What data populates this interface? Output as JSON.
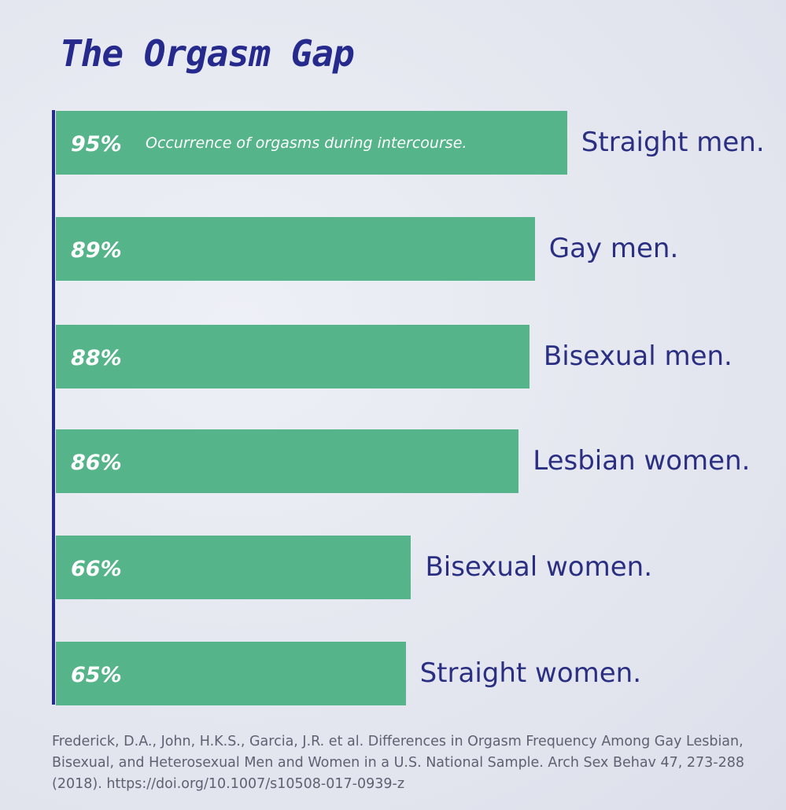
{
  "colors": {
    "bar": "#55b489",
    "title": "#262a8c",
    "label": "#2b2f82",
    "axis": "#262a8c"
  },
  "chart_data": {
    "type": "bar",
    "orientation": "horizontal",
    "title": "The Orgasm Gap",
    "annotation": "Occurrence of orgasms during intercourse.",
    "categories": [
      "Straight men.",
      "Gay men.",
      "Bisexual men.",
      "Lesbian women.",
      "Bisexual women.",
      "Straight women."
    ],
    "values": [
      95,
      89,
      88,
      86,
      66,
      65
    ],
    "value_labels": [
      "95%",
      "89%",
      "88%",
      "86%",
      "66%",
      "65%"
    ],
    "unit": "%",
    "xlim": [
      0,
      100
    ],
    "grid": false,
    "legend": "none",
    "source": "Frederick, D.A., John, H.K.S., Garcia, J.R. et al. Differences in Orgasm Frequency Among Gay Lesbian, Bisexual, and Heterosexual Men and Women in a U.S. National Sample. Arch Sex Behav 47, 273-288 (2018). https://doi.org/10.1007/s10508-017-0939-z"
  }
}
